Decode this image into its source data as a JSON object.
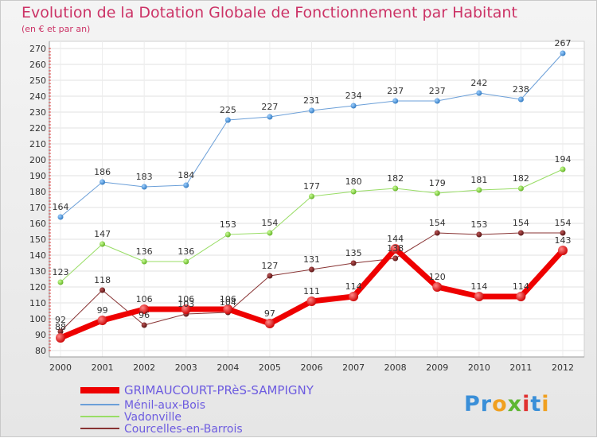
{
  "chart_data": {
    "type": "line",
    "title": "Evolution de la Dotation Globale de Fonctionnement par Habitant",
    "subtitle": "(en € et par an)",
    "x": [
      "2000",
      "2001",
      "2002",
      "2003",
      "2004",
      "2005",
      "2006",
      "2007",
      "2008",
      "2009",
      "2010",
      "2011",
      "2012"
    ],
    "ylim": [
      80,
      270
    ],
    "yticks": [
      80,
      90,
      100,
      110,
      120,
      130,
      140,
      150,
      160,
      170,
      180,
      190,
      200,
      210,
      220,
      230,
      240,
      250,
      260,
      270
    ],
    "grid": true,
    "legend_position": "bottom-left",
    "series": [
      {
        "name": "GRIMAUCOURT-PRèS-SAMPIGNY",
        "values": [
          88,
          99,
          106,
          106,
          106,
          97,
          111,
          114,
          144,
          120,
          114,
          114,
          143
        ],
        "color": "#ee0000",
        "width": 7,
        "marker": "#ee0000",
        "labels": true
      },
      {
        "name": "Ménil-aux-Bois",
        "values": [
          164,
          186,
          183,
          184,
          225,
          227,
          231,
          234,
          237,
          237,
          242,
          238,
          267
        ],
        "color": "#6b9fd8",
        "width": 1,
        "marker": "#3a86cc",
        "labels": true
      },
      {
        "name": "Vadonville",
        "values": [
          123,
          147,
          136,
          136,
          153,
          154,
          177,
          180,
          182,
          179,
          181,
          182,
          194
        ],
        "color": "#99dd66",
        "width": 1,
        "marker": "#77cc33",
        "labels": true
      },
      {
        "name": "Courcelles-en-Barrois",
        "values": [
          92,
          118,
          96,
          103,
          104,
          127,
          131,
          135,
          138,
          154,
          153,
          154,
          154
        ],
        "color": "#883333",
        "width": 1,
        "marker": "#661818",
        "labels": true
      }
    ]
  },
  "brand": "Proxiti"
}
